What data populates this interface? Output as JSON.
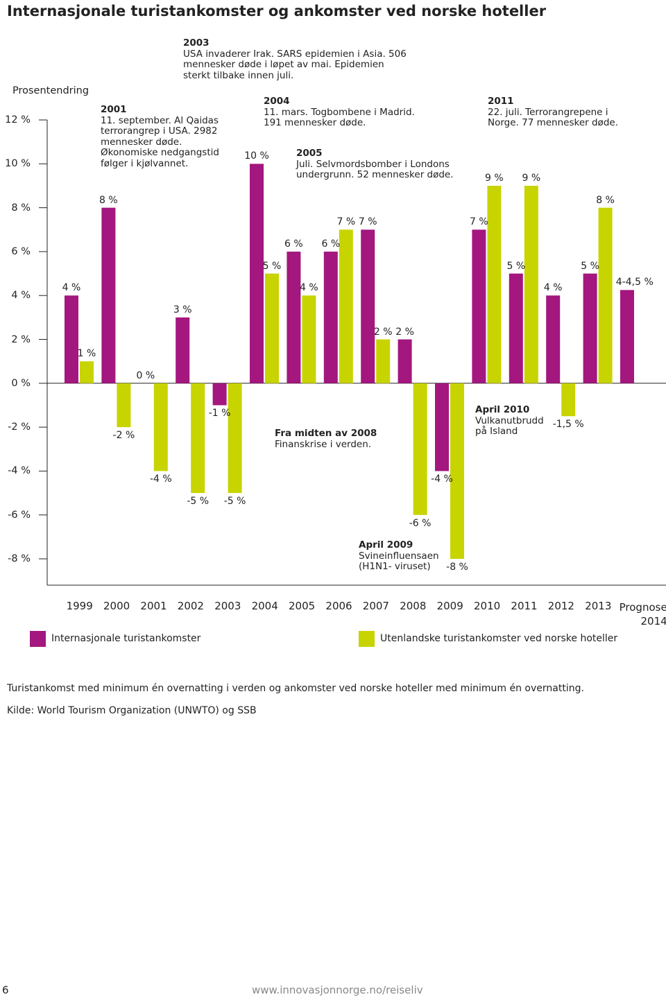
{
  "title": "Internasjonale turistankomster og ankomster ved norske hoteller",
  "chart_data": {
    "type": "bar",
    "y_label": "Prosentendring",
    "categories": [
      "1999",
      "2000",
      "2001",
      "2002",
      "2003",
      "2004",
      "2005",
      "2006",
      "2007",
      "2008",
      "2009",
      "2010",
      "2011",
      "2012",
      "2013",
      "Prognose 2014"
    ],
    "series": [
      {
        "name": "Internasjonale turistankomster",
        "color": "#a3177e",
        "values": [
          4,
          8,
          0,
          3,
          -1,
          10,
          6,
          6,
          7,
          2,
          -4,
          7,
          5,
          4,
          5,
          4.25
        ],
        "value_labels": [
          "4 %",
          "8 %",
          "0 %",
          "3 %",
          "-1 %",
          "10 %",
          "6 %",
          "6 %",
          "7 %",
          "2 %",
          "-4 %",
          "7 %",
          "5 %",
          "4 %",
          "5 %",
          "4-4,5 %"
        ]
      },
      {
        "name": "Utenlandske turistankomster ved norske hoteller",
        "color": "#c8d400",
        "values": [
          1,
          -2,
          -4,
          -5,
          -5,
          5,
          4,
          7,
          2,
          -6,
          -8,
          9,
          9,
          -1.5,
          8,
          null
        ],
        "value_labels": [
          "1 %",
          "-2 %",
          "-4 %",
          "-5 %",
          "-5 %",
          "5 %",
          "4 %",
          "7 %",
          "2 %",
          "-6 %",
          "-8 %",
          "9 %",
          "9 %",
          "-1,5 %",
          "8 %",
          null
        ]
      }
    ],
    "ylim": [
      -9.2,
      12
    ],
    "yticks": [
      {
        "value": -8,
        "label": "-8 %"
      },
      {
        "value": -6,
        "label": "-6 %"
      },
      {
        "value": -4,
        "label": "-4 %"
      },
      {
        "value": -2,
        "label": "-2 %"
      },
      {
        "value": 0,
        "label": "0 %"
      },
      {
        "value": 2,
        "label": "2 %"
      },
      {
        "value": 4,
        "label": "4 %"
      },
      {
        "value": 6,
        "label": "6 %"
      },
      {
        "value": 8,
        "label": "8 %"
      },
      {
        "value": 10,
        "label": "10 %"
      },
      {
        "value": 12,
        "label": "12 %"
      }
    ],
    "annotations": [
      {
        "title": "2003",
        "text": "USA invaderer Irak. SARS epidemien i Asia. 506 mennesker døde i løpet av mai. Epidemien sterkt tilbake innen juli."
      },
      {
        "title": "2001",
        "text": "11. september. Al Qaidas terrorangrep i USA. 2982 mennesker døde. Økonomiske nedgangstid følger i kjølvannet."
      },
      {
        "title": "2004",
        "text": "11. mars. Togbombene i Madrid. 191 mennesker døde."
      },
      {
        "title": "2005",
        "text": "Juli. Selvmordsbomber i Londons undergrunn. 52 mennesker døde."
      },
      {
        "title": "2011",
        "text": "22. juli. Terrorangrepene i Norge. 77 mennesker døde."
      },
      {
        "title": "Fra midten av 2008",
        "text": "Finanskrise i verden."
      },
      {
        "title": "April 2009",
        "text": "Svineinfluensaen (H1N1- viruset)"
      },
      {
        "title": "April 2010",
        "text": "Vulkanutbrudd på Island"
      }
    ]
  },
  "footnotes": [
    "Turistankomst med minimum én overnatting i verden og ankomster ved norske hoteller med minimum én overnatting.",
    "Kilde: World Tourism Organization (UNWTO) og SSB"
  ],
  "page_number": "6",
  "url": "www.innovasjonnorge.no/reiseliv"
}
